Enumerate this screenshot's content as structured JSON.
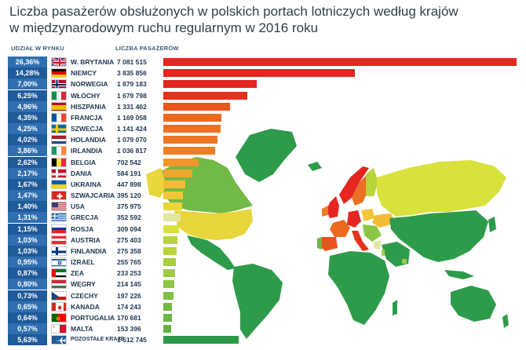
{
  "title_line1": "Liczba pasażerów obsłużonych w polskich portach lotniczych według krajów",
  "title_line2": "w międzynarodowym ruchu regularnym w 2016 roku",
  "header_share": "UDZIAŁ W RYNKU",
  "header_passengers": "LICZBA PASAŻERÓW",
  "chart_data": {
    "type": "bar",
    "orientation": "horizontal",
    "title": "Liczba pasażerów obsłużonych w polskich portach lotniczych według krajów w międzynarodowym ruchu regularnym w 2016 roku",
    "max_value": 7081515,
    "rows": [
      {
        "country": "W. BRYTANIA",
        "share": "26,36%",
        "value": 7081515,
        "value_label": "7 081 515",
        "color": "#e52520",
        "flag": "uk-flag-icon"
      },
      {
        "country": "NIEMCY",
        "share": "14,28%",
        "value": 3835856,
        "value_label": "3 835 856",
        "color": "#e52520",
        "flag": "germany-flag-icon"
      },
      {
        "country": "NORWEGIA",
        "share": "7,00%",
        "value": 1879183,
        "value_label": "1 879 183",
        "color": "#e52520",
        "flag": "norway-flag-icon"
      },
      {
        "country": "WŁOCHY",
        "share": "6,25%",
        "value": 1679798,
        "value_label": "1 679 798",
        "color": "#e6321d",
        "flag": "italy-flag-icon"
      },
      {
        "country": "HISZPANIA",
        "share": "4,96%",
        "value": 1331462,
        "value_label": "1 331 462",
        "color": "#e9561c",
        "flag": "spain-flag-icon"
      },
      {
        "country": "FRANCJA",
        "share": "4,35%",
        "value": 1169058,
        "value_label": "1 169 058",
        "color": "#eb6a1f",
        "flag": "france-flag-icon"
      },
      {
        "country": "SZWECJA",
        "share": "4,25%",
        "value": 1141424,
        "value_label": "1 141 424",
        "color": "#ec7021",
        "flag": "sweden-flag-icon"
      },
      {
        "country": "HOLANDIA",
        "share": "4,02%",
        "value": 1079070,
        "value_label": "1 079 070",
        "color": "#ed7723",
        "flag": "netherlands-flag-icon"
      },
      {
        "country": "IRLANDIA",
        "share": "3,86%",
        "value": 1036817,
        "value_label": "1 036 817",
        "color": "#ee7e24",
        "flag": "ireland-flag-icon"
      },
      {
        "country": "BELGIA",
        "share": "2,62%",
        "value": 702542,
        "value_label": "702 542",
        "color": "#f0962a",
        "flag": "belgium-flag-icon"
      },
      {
        "country": "DANIA",
        "share": "2,17%",
        "value": 584191,
        "value_label": "584 191",
        "color": "#f2a62e",
        "flag": "denmark-flag-icon"
      },
      {
        "country": "UKRAINA",
        "share": "1,67%",
        "value": 447898,
        "value_label": "447 898",
        "color": "#f4bb34",
        "flag": "ukraine-flag-icon"
      },
      {
        "country": "SZWAJCARIA",
        "share": "1,47%",
        "value": 395120,
        "value_label": "395 120",
        "color": "#f3c63a",
        "flag": "switzerland-flag-icon"
      },
      {
        "country": "USA",
        "share": "1,40%",
        "value": 375975,
        "value_label": "375 975",
        "color": "#e9d53c",
        "flag": "usa-flag-icon"
      },
      {
        "country": "GRECJA",
        "share": "1,31%",
        "value": 352592,
        "value_label": "352 592",
        "color": "#e2e7a0",
        "flag": "greece-flag-icon"
      },
      {
        "country": "ROSJA",
        "share": "1,15%",
        "value": 309094,
        "value_label": "309 094",
        "color": "#d9e23c",
        "flag": "russia-flag-icon"
      },
      {
        "country": "AUSTRIA",
        "share": "1,03%",
        "value": 275403,
        "value_label": "275 403",
        "color": "#b8d43a",
        "flag": "austria-flag-icon"
      },
      {
        "country": "FINLANDIA",
        "share": "1,03%",
        "value": 275358,
        "value_label": "275 358",
        "color": "#b8d43a",
        "flag": "finland-flag-icon"
      },
      {
        "country": "IZRAEL",
        "share": "0,95%",
        "value": 255765,
        "value_label": "255 765",
        "color": "#a7cf3e",
        "flag": "israel-flag-icon"
      },
      {
        "country": "ZEA",
        "share": "0,87%",
        "value": 233253,
        "value_label": "233 253",
        "color": "#9ccb42",
        "flag": "uae-flag-icon"
      },
      {
        "country": "WĘGRY",
        "share": "0,80%",
        "value": 214145,
        "value_label": "214 145",
        "color": "#8dc645",
        "flag": "hungary-flag-icon"
      },
      {
        "country": "CZECHY",
        "share": "0,73%",
        "value": 197226,
        "value_label": "197 226",
        "color": "#7fc047",
        "flag": "czechia-flag-icon"
      },
      {
        "country": "KANADA",
        "share": "0,65%",
        "value": 174243,
        "value_label": "174 243",
        "color": "#72ba47",
        "flag": "canada-flag-icon"
      },
      {
        "country": "PORTUGALIA",
        "share": "0,64%",
        "value": 170681,
        "value_label": "170 681",
        "color": "#6db746",
        "flag": "portugal-flag-icon"
      },
      {
        "country": "MALTA",
        "share": "0,57%",
        "value": 153396,
        "value_label": "153 396",
        "color": "#64b246",
        "flag": "malta-flag-icon"
      },
      {
        "country": "POZOSTAŁE KRAJE",
        "share": "5,63%",
        "value": 1512745,
        "value_label": "1 512 745",
        "color": "#2a9a47",
        "flag": "airplane-icon"
      }
    ]
  }
}
